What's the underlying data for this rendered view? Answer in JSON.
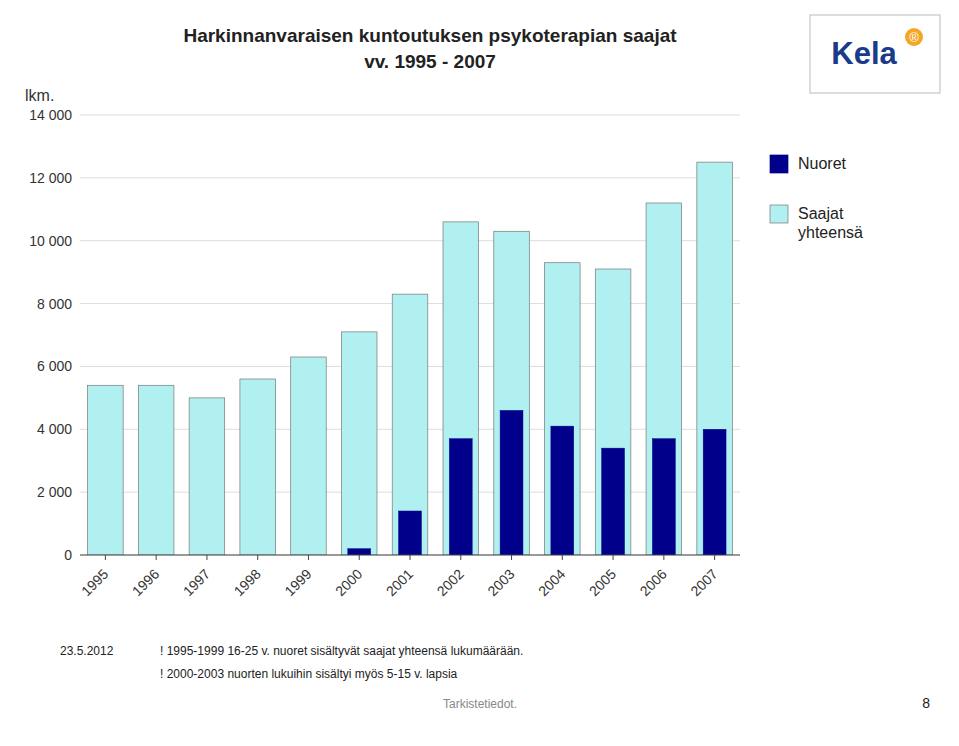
{
  "chart_data": {
    "type": "bar",
    "title": "Harkinnanvaraisen kuntoutuksen psykoterapian saajat",
    "subtitle": "vv. 1995 - 2007",
    "ylabel": "lkm.",
    "categories": [
      "1995",
      "1996",
      "1997",
      "1998",
      "1999",
      "2000",
      "2001",
      "2002",
      "2003",
      "2004",
      "2005",
      "2006",
      "2007"
    ],
    "series": [
      {
        "name": "Saajat\nyhteensä",
        "color": "#b0f0f0",
        "values": [
          5400,
          5400,
          5000,
          5600,
          6300,
          7100,
          8300,
          10600,
          10300,
          9300,
          9100,
          11200,
          12500
        ]
      },
      {
        "name": "Nuoret",
        "color": "#00008B",
        "values": [
          0,
          0,
          0,
          0,
          0,
          200,
          1400,
          3700,
          4600,
          4100,
          3400,
          3700,
          4000
        ]
      }
    ],
    "ylim": [
      0,
      14000
    ],
    "yticks": [
      0,
      {
        "value": 2000,
        "label": "2 000"
      },
      {
        "value": 4000,
        "label": "4 000"
      },
      {
        "value": 6000,
        "label": "6 000"
      },
      {
        "value": 8000,
        "label": "8 000"
      },
      {
        "value": 10000,
        "label": "10 000"
      },
      {
        "value": 12000,
        "label": "12 000"
      },
      {
        "value": 14000,
        "label": "14 000"
      }
    ],
    "grid": true,
    "legend": "right",
    "annotations": [
      "Kela",
      "®",
      "23.5.2012",
      "! 1995-1999 16-25 v. nuoret sisältyvät saajat yhteensä lukumäärään.",
      "! 2000-2003 nuorten lukuihin sisältyi myös 5-15 v. lapsia",
      "Tarkistetiedot.",
      "8"
    ]
  }
}
